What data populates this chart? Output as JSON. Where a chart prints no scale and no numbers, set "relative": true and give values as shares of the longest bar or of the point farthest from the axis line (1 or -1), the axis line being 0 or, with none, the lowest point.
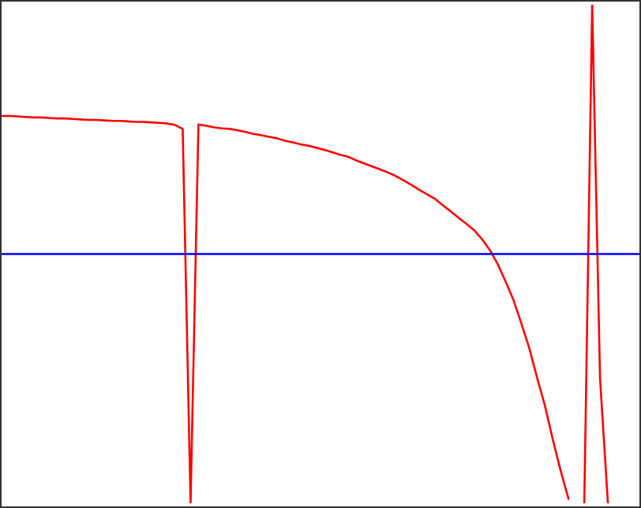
{
  "chart_data": {
    "type": "line",
    "relative": true,
    "tick_labels": false,
    "grid": false,
    "legend": false,
    "marker": "none",
    "line_style": "solid",
    "categories": [
      null,
      null,
      null,
      null,
      null,
      null,
      null,
      null,
      null,
      null,
      null,
      null,
      null,
      null,
      null,
      null,
      null,
      null,
      null,
      null,
      null,
      null,
      null,
      null,
      null,
      null,
      null,
      null,
      null,
      null,
      null,
      null,
      null,
      null,
      null,
      null,
      null,
      null,
      null,
      null,
      null,
      null,
      null,
      null,
      null,
      null,
      null,
      null,
      null,
      null,
      null,
      null,
      null,
      null,
      null,
      null,
      null,
      null,
      null,
      null,
      null,
      null,
      null,
      null,
      null,
      null,
      null,
      null,
      null,
      null,
      null,
      null,
      null,
      null,
      null,
      null,
      null,
      null,
      null,
      null,
      null,
      null
    ],
    "series": [
      {
        "color": "#ff0000",
        "values": [
          0.777,
          0.777,
          0.776,
          0.775,
          0.774,
          0.774,
          0.773,
          0.772,
          0.772,
          0.771,
          0.77,
          0.769,
          0.769,
          0.768,
          0.767,
          0.767,
          0.766,
          0.765,
          0.765,
          0.764,
          0.763,
          0.762,
          0.759,
          0.751,
          0,
          0.76,
          0.757,
          0.754,
          0.752,
          0.751,
          0.748,
          0.745,
          0.741,
          0.738,
          0.735,
          0.732,
          0.727,
          0.724,
          0.72,
          0.717,
          0.713,
          0.709,
          0.704,
          0.699,
          0.695,
          0.688,
          0.682,
          0.676,
          0.67,
          0.664,
          0.657,
          0.648,
          0.639,
          0.629,
          0.62,
          0.611,
          0.598,
          0.586,
          0.573,
          0.561,
          0.548,
          0.53,
          0.508,
          0.48,
          0.445,
          0.408,
          0.361,
          0.312,
          0.252,
          0.196,
          0.128,
          0.065,
          0.009,
          null,
          0,
          1,
          0.25,
          0,
          null,
          null,
          null,
          null
        ]
      },
      {
        "color": "#0000ff",
        "values": [
          0.5,
          0.5,
          0.5,
          0.5,
          0.5,
          0.5,
          0.5,
          0.5,
          0.5,
          0.5,
          0.5,
          0.5,
          0.5,
          0.5,
          0.5,
          0.5,
          0.5,
          0.5,
          0.5,
          0.5,
          0.5,
          0.5,
          0.5,
          0.5,
          0.5,
          0.5,
          0.5,
          0.5,
          0.5,
          0.5,
          0.5,
          0.5,
          0.5,
          0.5,
          0.5,
          0.5,
          0.5,
          0.5,
          0.5,
          0.5,
          0.5,
          0.5,
          0.5,
          0.5,
          0.5,
          0.5,
          0.5,
          0.5,
          0.5,
          0.5,
          0.5,
          0.5,
          0.5,
          0.5,
          0.5,
          0.5,
          0.5,
          0.5,
          0.5,
          0.5,
          0.5,
          0.5,
          0.5,
          0.5,
          0.5,
          0.5,
          0.5,
          0.5,
          0.5,
          0.5,
          0.5,
          0.5,
          0.5,
          0.5,
          0.5,
          0.5,
          0.5,
          0.5,
          0.5,
          0.5,
          0.5,
          0.5
        ]
      }
    ]
  }
}
